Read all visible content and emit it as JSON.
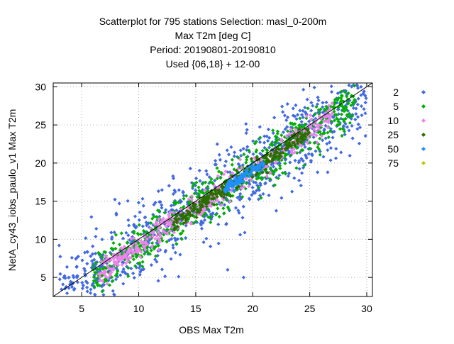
{
  "chart_data": {
    "type": "scatter",
    "title_lines": [
      "Scatterplot for  795 stations Selection: masl_0-200m",
      "Max T2m [deg C]",
      "Period: 20190801-20190810",
      "Used {06,18} + 12-00"
    ],
    "xlabel": "OBS Max T2m",
    "ylabel": "NetA_cy43_iobs_paulo_v1 Max T2m",
    "xlim": [
      2.5,
      30.5
    ],
    "ylim": [
      2.5,
      30.5
    ],
    "xticks": [
      5,
      10,
      15,
      20,
      25,
      30
    ],
    "yticks": [
      5,
      10,
      15,
      20,
      25,
      30
    ],
    "grid": true,
    "diagonal": true,
    "legend_position": "right",
    "legend": [
      {
        "label": "2",
        "color": "#4169e1"
      },
      {
        "label": "5",
        "color": "#00b000"
      },
      {
        "label": "10",
        "color": "#ee82ee"
      },
      {
        "label": "25",
        "color": "#2e6b00"
      },
      {
        "label": "50",
        "color": "#1e90ff"
      },
      {
        "label": "75",
        "color": "#c8c800"
      }
    ],
    "series": [
      {
        "name": "2",
        "spread": 2.6,
        "n": 900,
        "xrange": [
          3,
          30
        ],
        "points": [
          [
            3.5,
            5.2
          ],
          [
            4.3,
            5.0
          ],
          [
            19.2,
            5.0
          ],
          [
            13.5,
            5.1
          ],
          [
            10.0,
            14.8
          ],
          [
            8.3,
            14.7
          ],
          [
            17.8,
            6.0
          ],
          [
            26.0,
            25.2
          ],
          [
            28.5,
            28.2
          ],
          [
            29.5,
            30.0
          ]
        ]
      },
      {
        "name": "5",
        "spread": 1.5,
        "n": 650,
        "xrange": [
          6,
          29
        ]
      },
      {
        "name": "10",
        "spread": 0.9,
        "n": 450,
        "xrange": [
          6.5,
          27
        ]
      },
      {
        "name": "25",
        "spread": 0.5,
        "n": 300,
        "xrange": [
          13,
          25
        ]
      },
      {
        "name": "50",
        "spread": 0.3,
        "n": 110,
        "xrange": [
          17.5,
          21
        ]
      },
      {
        "name": "75",
        "spread": 0.1,
        "n": 0,
        "xrange": [
          19,
          20
        ]
      }
    ]
  }
}
